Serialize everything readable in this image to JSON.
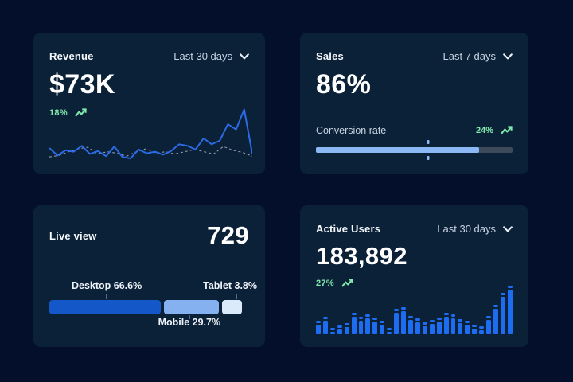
{
  "theme": {
    "page_bg": "#030f2b",
    "card_bg": "#0b2138",
    "text_primary": "#ffffff",
    "text_muted": "#c7d3e2",
    "accent_green": "#80e9ac",
    "line_blue": "#2c6be8",
    "line_dashed_gray": "#94a0b4",
    "bar_blue": "#1c6df2",
    "progress_fill": "#8cb9f4",
    "progress_track": "#3d4a5c",
    "segment_desktop": "#1457c8",
    "segment_mobile": "#85b1f1",
    "segment_tablet": "#dbeafb",
    "leader_tick": "#55649a"
  },
  "cards": {
    "revenue": {
      "title": "Revenue",
      "period": "Last 30 days",
      "value": "$73K",
      "delta": "18%"
    },
    "sales": {
      "title": "Sales",
      "period": "Last 7 days",
      "value": "86%",
      "metric_label": "Conversion rate",
      "delta": "24%"
    },
    "live_view": {
      "title": "Live view",
      "value": "729",
      "segments": [
        {
          "name": "Desktop",
          "label": "Desktop 66.6%",
          "value_pct": 66.6
        },
        {
          "name": "Mobile",
          "label": "Mobile 29.7%",
          "value_pct": 29.7
        },
        {
          "name": "Tablet",
          "label": "Tablet 3.8%",
          "value_pct": 3.8
        }
      ]
    },
    "active_users": {
      "title": "Active Users",
      "period": "Last 30 days",
      "value": "183,892",
      "delta": "27%"
    }
  },
  "chart_data": [
    {
      "id": "revenue-trend",
      "type": "line",
      "title": "Revenue last 30 days",
      "grid": false,
      "legend_position": "none",
      "ylim": [
        0,
        75
      ],
      "series": [
        {
          "name": "current",
          "style": "solid",
          "color": "#2c6be8",
          "values": [
            15,
            5,
            12,
            10,
            18,
            7,
            11,
            4,
            17,
            3,
            1,
            13,
            8,
            10,
            6,
            11,
            20,
            18,
            13,
            28,
            20,
            25,
            47,
            40,
            67,
            7
          ]
        },
        {
          "name": "previous",
          "style": "dashed",
          "color": "#94a0b4",
          "values": [
            3,
            5,
            10,
            14,
            16,
            7,
            10,
            8,
            4,
            10,
            14,
            8,
            10,
            7,
            10,
            13,
            10,
            7,
            17,
            12,
            9,
            4
          ]
        }
      ]
    },
    {
      "id": "sales-progress",
      "type": "bar",
      "title": "Conversion rate",
      "categories": [
        "Conversion rate"
      ],
      "values": [
        86
      ],
      "ylim": [
        0,
        100
      ],
      "fill_display_pct": 83,
      "marker_pct": 57
    },
    {
      "id": "live-split",
      "type": "bar",
      "title": "Live view device split",
      "categories": [
        "Desktop",
        "Mobile",
        "Tablet"
      ],
      "values": [
        66.6,
        29.7,
        3.8
      ],
      "display_widths_pct": [
        56.5,
        28.5,
        11
      ],
      "colors": [
        "#1457c8",
        "#85b1f1",
        "#dbeafb"
      ],
      "ticks": [
        {
          "pct": 28.5,
          "side": "above",
          "align": "center"
        },
        {
          "pct": 69.5,
          "side": "below",
          "align": "center"
        },
        {
          "pct": 93,
          "side": "above",
          "align": "right"
        }
      ]
    },
    {
      "id": "active-users-bars",
      "type": "bar",
      "title": "Active users last 30 days",
      "ylim": [
        0,
        68
      ],
      "values": [
        17,
        22,
        8,
        11,
        14,
        27,
        22,
        25,
        21,
        17,
        8,
        32,
        34,
        23,
        20,
        15,
        18,
        21,
        27,
        25,
        19,
        17,
        12,
        10,
        23,
        37,
        52,
        61
      ]
    }
  ]
}
